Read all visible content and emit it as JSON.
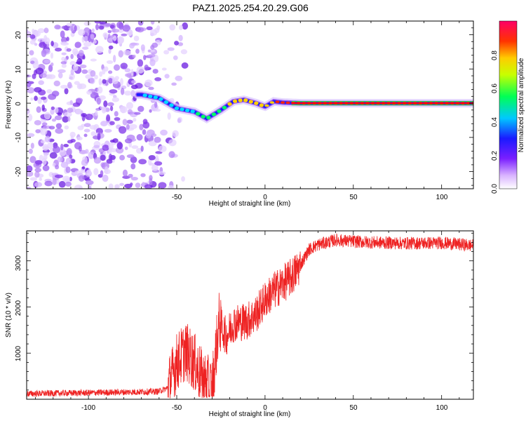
{
  "chart_data": [
    {
      "type": "heatmap",
      "title": "PAZ1.2025.254.20.29.G06",
      "xlabel": "Height of straight line (km)",
      "ylabel": "Frequency (Hz)",
      "xlim": [
        -135,
        118
      ],
      "ylim": [
        -25,
        24
      ],
      "xticks": [
        "-100",
        "-50",
        "0",
        "50",
        "100"
      ],
      "yticks": [
        "20",
        "10",
        "0",
        "-10",
        "-20"
      ],
      "colorbar": {
        "label": "Normalized spectral amplitude",
        "range": [
          0,
          1
        ],
        "ticks": [
          "0.0",
          "0.2",
          "0.4",
          "0.6",
          "0.8"
        ]
      },
      "ridge": {
        "description_points_x": [
          -70,
          -60,
          -50,
          -40,
          -33,
          -25,
          -18,
          -12,
          -5,
          0,
          5,
          10,
          20,
          50,
          118
        ],
        "frequency": [
          2.5,
          1.5,
          -1.5,
          -2.5,
          -4.5,
          -2,
          0.5,
          1,
          0,
          -1,
          0.5,
          0.2,
          0,
          0,
          0
        ]
      }
    },
    {
      "type": "line",
      "title": "",
      "xlabel": "Height of straight line (km)",
      "ylabel": "SNR (10 * v/v)",
      "xlim": [
        -135,
        118
      ],
      "ylim": [
        0,
        3650
      ],
      "xticks": [
        "-100",
        "-50",
        "0",
        "50",
        "100"
      ],
      "yticks": [
        "1000",
        "2000",
        "3000"
      ],
      "series": [
        {
          "name": "SNR",
          "color": "#ee2222",
          "x": [
            -135,
            -100,
            -70,
            -60,
            -55,
            -50,
            -45,
            -40,
            -35,
            -30,
            -26,
            -22,
            -18,
            -10,
            -5,
            0,
            5,
            10,
            15,
            20,
            25,
            30,
            40,
            50,
            60,
            80,
            100,
            118
          ],
          "y": [
            120,
            140,
            160,
            170,
            250,
            800,
            1050,
            800,
            400,
            250,
            1700,
            1350,
            1650,
            1700,
            1850,
            2150,
            2350,
            2500,
            2650,
            2900,
            3250,
            3350,
            3450,
            3420,
            3400,
            3380,
            3390,
            3330
          ]
        }
      ]
    }
  ]
}
